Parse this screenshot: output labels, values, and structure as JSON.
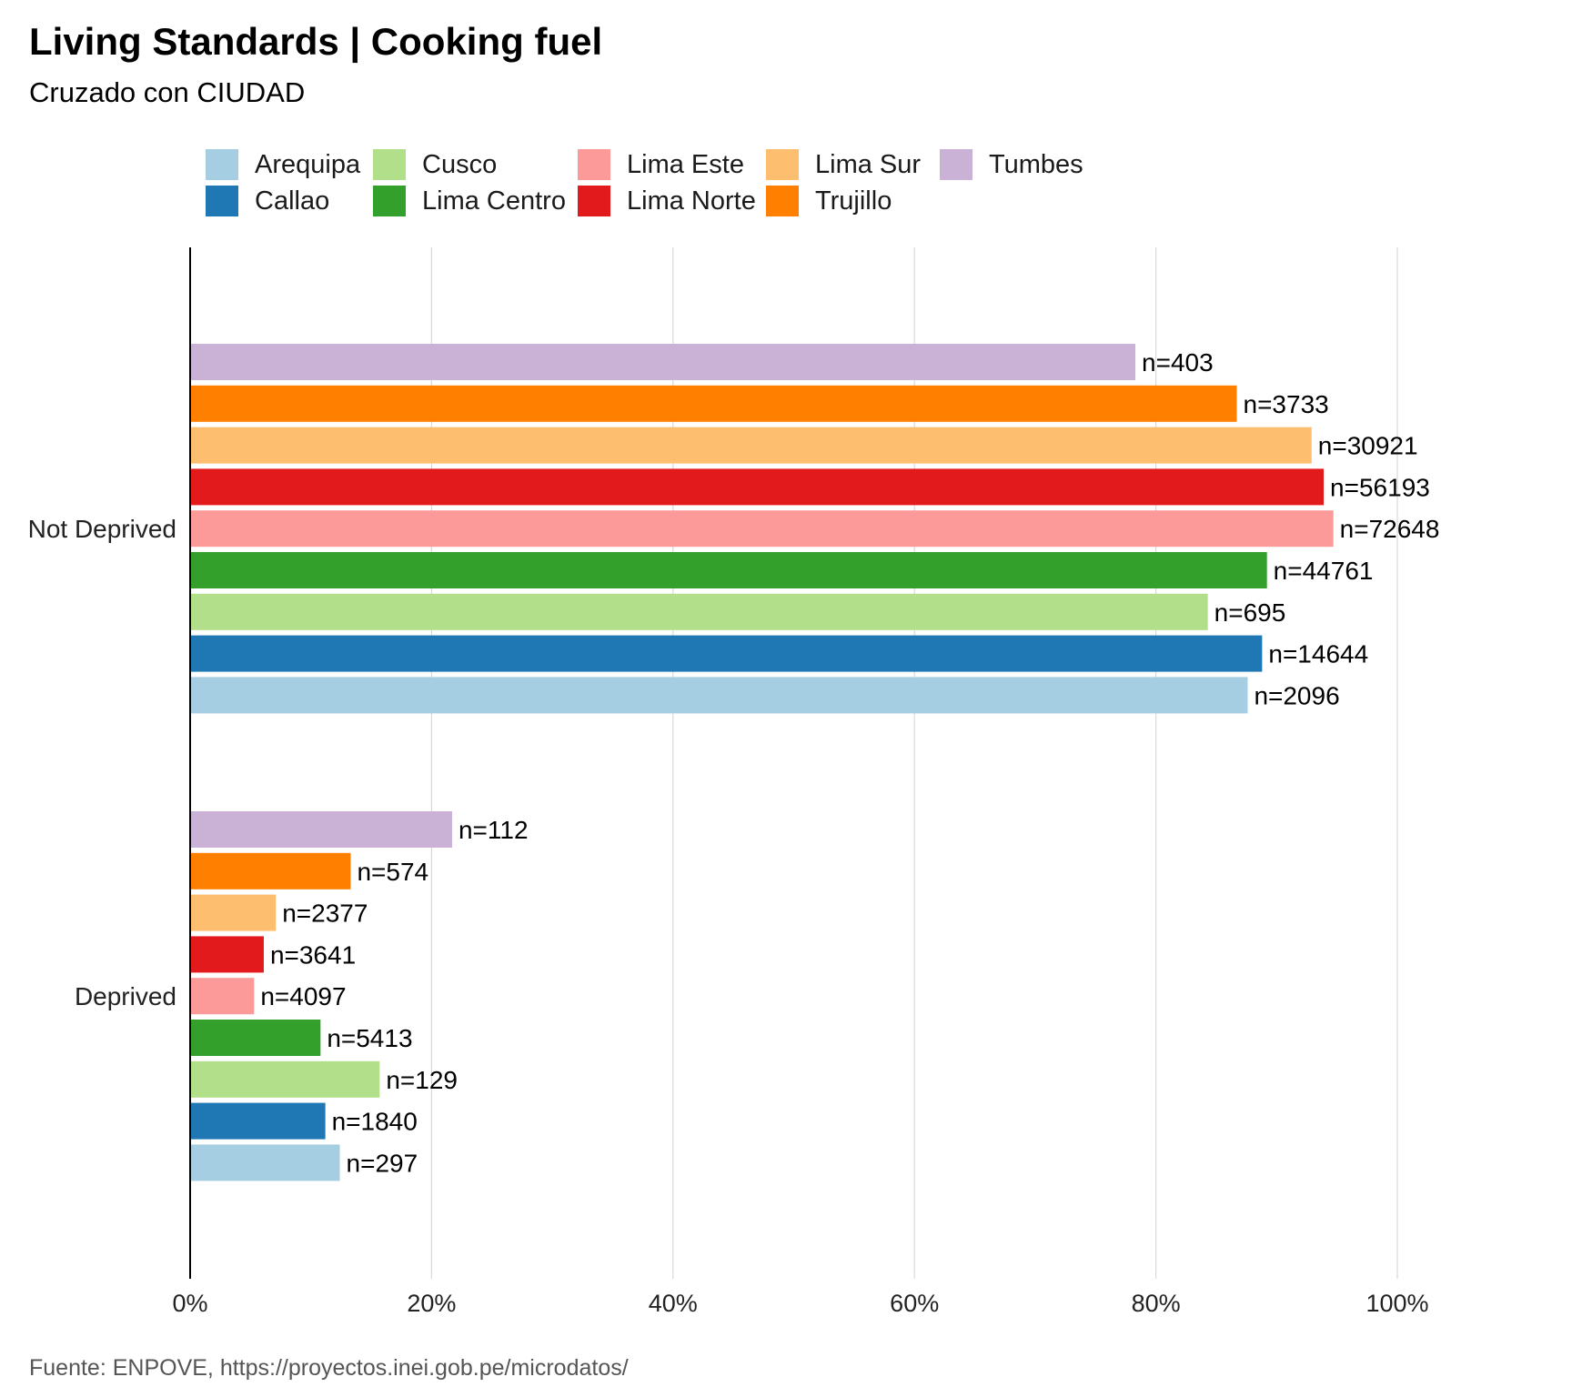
{
  "chart_data": {
    "type": "bar",
    "orientation": "horizontal",
    "title": "Living Standards | Cooking fuel",
    "subtitle": "Cruzado con CIUDAD",
    "caption": "Fuente:  ENPOVE, https://proyectos.inei.gob.pe/microdatos/",
    "categories": [
      "Not Deprived",
      "Deprived"
    ],
    "xlim": [
      0,
      1
    ],
    "x_ticks": [
      0,
      0.2,
      0.4,
      0.6,
      0.8,
      1.0
    ],
    "x_tick_labels": [
      "0%",
      "20%",
      "40%",
      "60%",
      "80%",
      "100%"
    ],
    "grid": true,
    "legend_position": "top",
    "series": [
      {
        "name": "Arequipa",
        "color": "#a6cee3",
        "values": [
          0.876,
          0.124
        ],
        "labels": [
          "n=2096",
          "n=297"
        ]
      },
      {
        "name": "Callao",
        "color": "#1f78b4",
        "values": [
          0.888,
          0.112
        ],
        "labels": [
          "n=14644",
          "n=1840"
        ]
      },
      {
        "name": "Cusco",
        "color": "#b2df8a",
        "values": [
          0.843,
          0.157
        ],
        "labels": [
          "n=695",
          "n=129"
        ]
      },
      {
        "name": "Lima Centro",
        "color": "#33a02c",
        "values": [
          0.892,
          0.108
        ],
        "labels": [
          "n=44761",
          "n=5413"
        ]
      },
      {
        "name": "Lima Este",
        "color": "#fb9a99",
        "values": [
          0.947,
          0.053
        ],
        "labels": [
          "n=72648",
          "n=4097"
        ]
      },
      {
        "name": "Lima Norte",
        "color": "#e31a1c",
        "values": [
          0.939,
          0.061
        ],
        "labels": [
          "n=56193",
          "n=3641"
        ]
      },
      {
        "name": "Lima Sur",
        "color": "#fdbf6f",
        "values": [
          0.929,
          0.071
        ],
        "labels": [
          "n=30921",
          "n=2377"
        ]
      },
      {
        "name": "Trujillo",
        "color": "#ff7f00",
        "values": [
          0.867,
          0.133
        ],
        "labels": [
          "n=3733",
          "n=574"
        ]
      },
      {
        "name": "Tumbes",
        "color": "#cab2d6",
        "values": [
          0.783,
          0.217
        ],
        "labels": [
          "n=403",
          "n=112"
        ]
      }
    ]
  }
}
